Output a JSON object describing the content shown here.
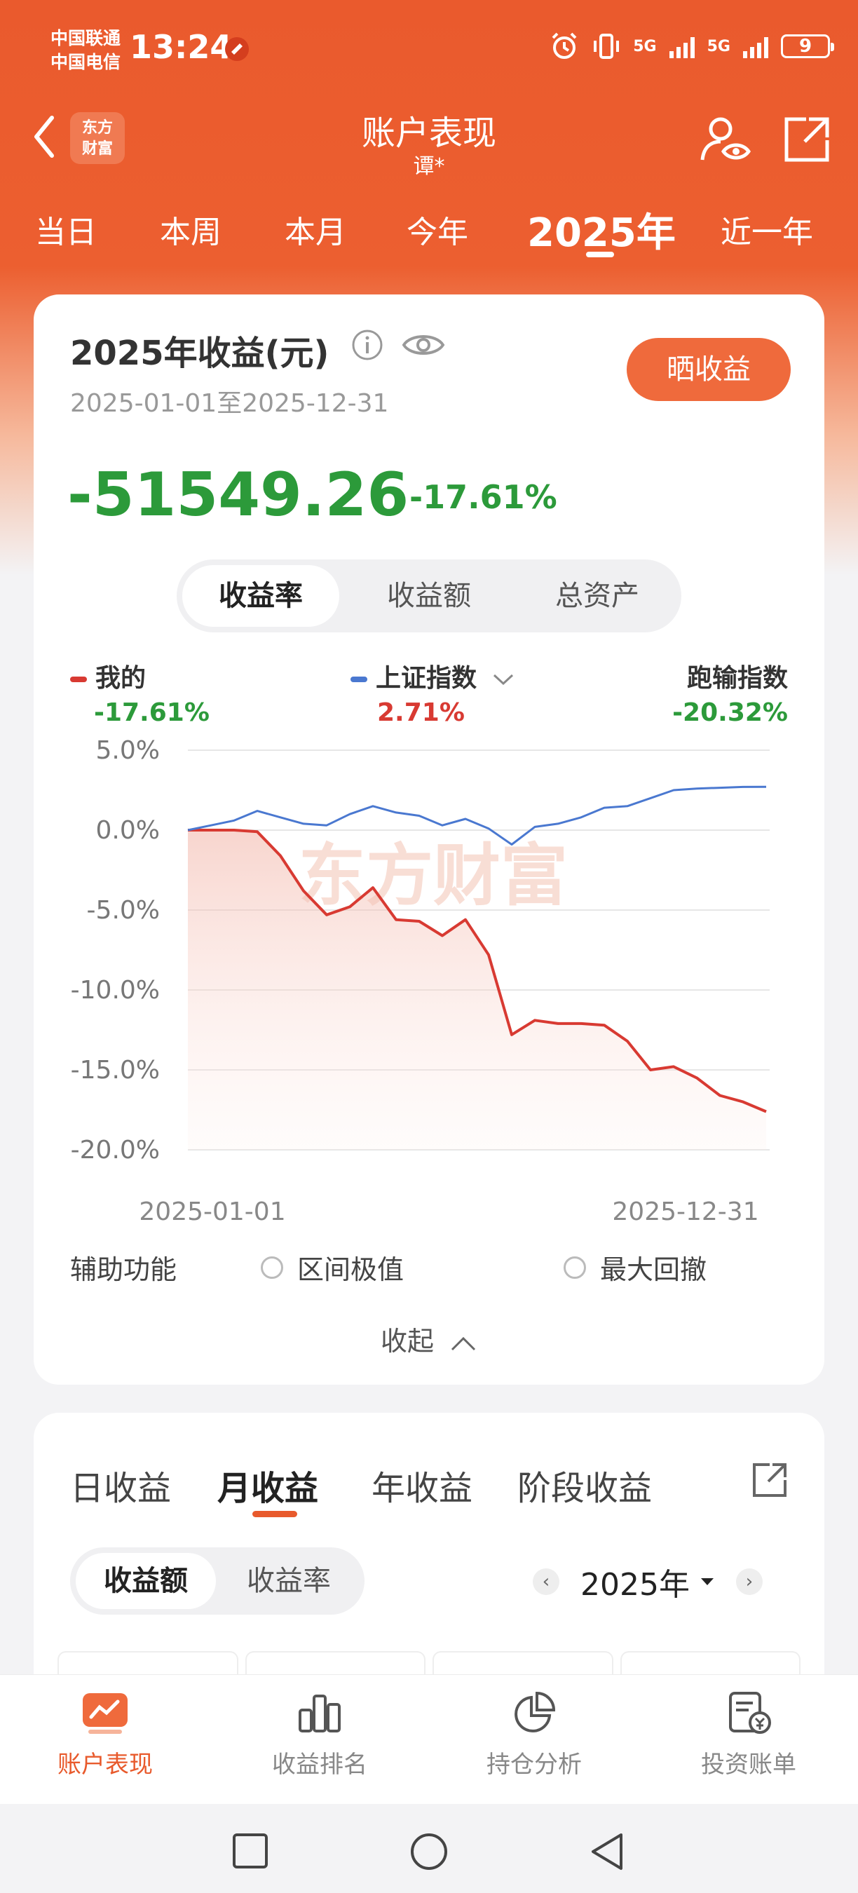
{
  "status_bar": {
    "carrier_1": "中国联通",
    "carrier_2": "中国电信",
    "time": "13:24",
    "net_1": "5G",
    "net_2": "5G",
    "battery": "9"
  },
  "header": {
    "logo_text": "东方财富",
    "title": "账户表现",
    "subtitle": "谭*",
    "icons": [
      "back-icon",
      "account-eye-icon",
      "share-out-icon"
    ]
  },
  "period_tabs": {
    "items": [
      "当日",
      "本周",
      "本月",
      "今年",
      "2025年",
      "近一年"
    ],
    "active": "2025年"
  },
  "summary": {
    "title": "2025年收益(元)",
    "date_range": "2025-01-01至2025-12-31",
    "share_button": "晒收益",
    "profit": "-51549.26",
    "profit_pct": "-17.61%",
    "metric_tabs": [
      "收益率",
      "收益额",
      "总资产"
    ],
    "active_metric": "收益率"
  },
  "legend": {
    "mine_label": "我的",
    "mine_value": "-17.61%",
    "index_label": "上证指数",
    "index_value": "2.71%",
    "underperform_label": "跑输指数",
    "underperform_value": "-20.32%"
  },
  "chart_data": {
    "type": "line",
    "watermark": "东方财富",
    "y_ticks": [
      "5.0%",
      "0.0%",
      "-5.0%",
      "-10.0%",
      "-15.0%",
      "-20.0%"
    ],
    "ylim": [
      -20,
      5
    ],
    "x_start_label": "2025-01-01",
    "x_end_label": "2025-12-31",
    "series": [
      {
        "name": "我的",
        "color": "#d83a32",
        "values": [
          0,
          0,
          0,
          -0.1,
          -1.6,
          -3.8,
          -5.3,
          -4.8,
          -3.6,
          -5.6,
          -5.7,
          -6.6,
          -5.6,
          -7.8,
          -12.8,
          -11.9,
          -12.1,
          -12.1,
          -12.2,
          -13.2,
          -15.0,
          -14.8,
          -15.5,
          -16.6,
          -17.0,
          -17.61
        ]
      },
      {
        "name": "上证指数",
        "color": "#4a78d0",
        "values": [
          0,
          0.3,
          0.6,
          1.2,
          0.8,
          0.4,
          0.3,
          1.0,
          1.5,
          1.1,
          0.9,
          0.3,
          0.7,
          0.1,
          -0.9,
          0.2,
          0.4,
          0.8,
          1.4,
          1.5,
          2.0,
          2.5,
          2.6,
          2.65,
          2.7,
          2.71
        ]
      }
    ],
    "colors": {
      "mine": "#d83a32",
      "index": "#4a78d0",
      "grid": "#e6e6e6"
    }
  },
  "aux": {
    "label": "辅助功能",
    "option_1": "区间极值",
    "option_2": "最大回撤",
    "collapse": "收起"
  },
  "returns": {
    "tabs": [
      "日收益",
      "月收益",
      "年收益",
      "阶段收益"
    ],
    "active": "月收益",
    "mode_tabs": [
      "收益额",
      "收益率"
    ],
    "active_mode": "收益额",
    "year": "2025年"
  },
  "bottom_nav": {
    "items": [
      "账户表现",
      "收益排名",
      "持仓分析",
      "投资账单"
    ],
    "active": "账户表现"
  },
  "theme": {
    "brand": "#ea5a2d",
    "gain_green": "#2c9a3a",
    "loss_red": "#d83a32"
  }
}
